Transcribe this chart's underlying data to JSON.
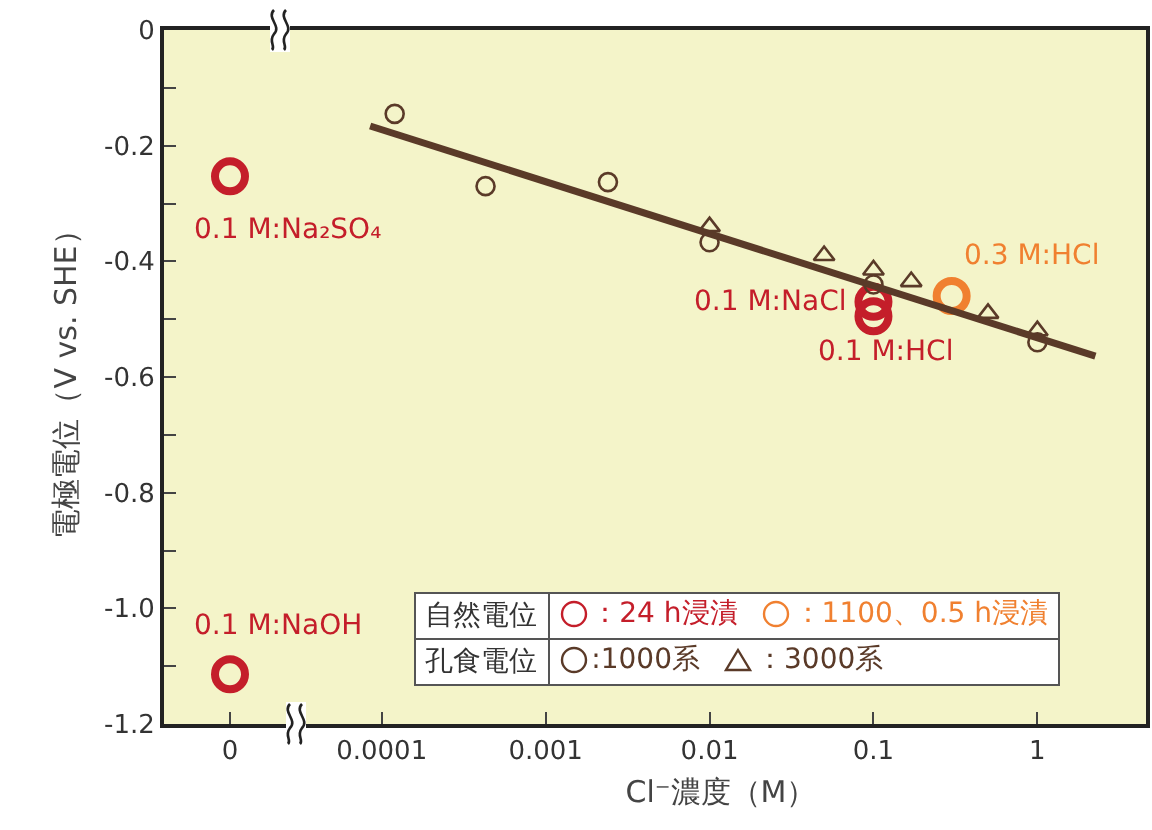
{
  "chart_data": [
    {
      "type": "scatter",
      "categories": [
        "0"
      ],
      "ylabel": "電極電位（V vs. SHE）",
      "ylim": [
        -1.2,
        0
      ],
      "yticks": [
        0,
        {
          "value": -0.1,
          "label": null
        },
        -0.2,
        {
          "value": -0.3,
          "label": null
        },
        -0.4,
        {
          "value": -0.5,
          "label": null
        },
        -0.6,
        {
          "value": -0.7,
          "label": null
        },
        -0.8,
        {
          "value": -0.9,
          "label": null
        },
        {
          "value": -1,
          "label": "-1.0"
        },
        {
          "value": -1.1,
          "label": null
        },
        -1.2
      ],
      "grid": false,
      "annotations": [
        "0.1 M:Na₂SO₄",
        "0.1 M:NaOH"
      ],
      "series": [
        {
          "color": "#c41e2a",
          "marker": "circle",
          "x": [
            "0",
            "0"
          ],
          "values": [
            -0.253,
            -1.114
          ]
        }
      ]
    },
    {
      "type": "scatter",
      "xlabel": "Cl⁻濃度（M）",
      "log": "x",
      "xlim": [
        3e-05,
        4.6
      ],
      "xticks": [
        0.0001,
        0.001,
        0.01,
        0.1,
        1
      ],
      "ylim": [
        -1.2,
        0
      ],
      "tick_labels": "x",
      "grid": false,
      "legend": "bottom right",
      "annotations": [
        "自然電位",
        "孔食電位",
        "0.1 M:NaCl",
        "0.1 M:HCl",
        "0.3 M:HCl"
      ],
      "series": [
        {
          "name": "：24 h浸漬",
          "color": "#c41e2a",
          "marker": "circle",
          "x": [
            0.1,
            0.1
          ],
          "values": [
            -0.47,
            -0.495
          ]
        },
        {
          "name": "：1100、0.5 h浸漬",
          "color": "#f08030",
          "marker": "circle",
          "x": [
            0.3
          ],
          "values": [
            -0.46
          ]
        },
        {
          "name": ":1000系",
          "color": "#5a3a28",
          "marker": "circle",
          "x": [
            0.00012,
            0.00043,
            0.0024,
            0.01,
            0.1,
            1
          ],
          "values": [
            -0.145,
            -0.27,
            -0.263,
            -0.367,
            -0.44,
            -0.54
          ]
        },
        {
          "name": "：3000系",
          "color": "#5a3a28",
          "marker": "triangle",
          "x": [
            0.01,
            0.05,
            0.1,
            0.17,
            0.5,
            1
          ],
          "values": [
            -0.34,
            -0.39,
            -0.415,
            -0.435,
            -0.49,
            -0.52
          ]
        },
        {
          "type": "line",
          "color": "#5a3a28",
          "marker": "none",
          "x": [
            8.5e-05,
            2.26
          ],
          "values": [
            -0.166,
            -0.564
          ]
        }
      ]
    }
  ]
}
